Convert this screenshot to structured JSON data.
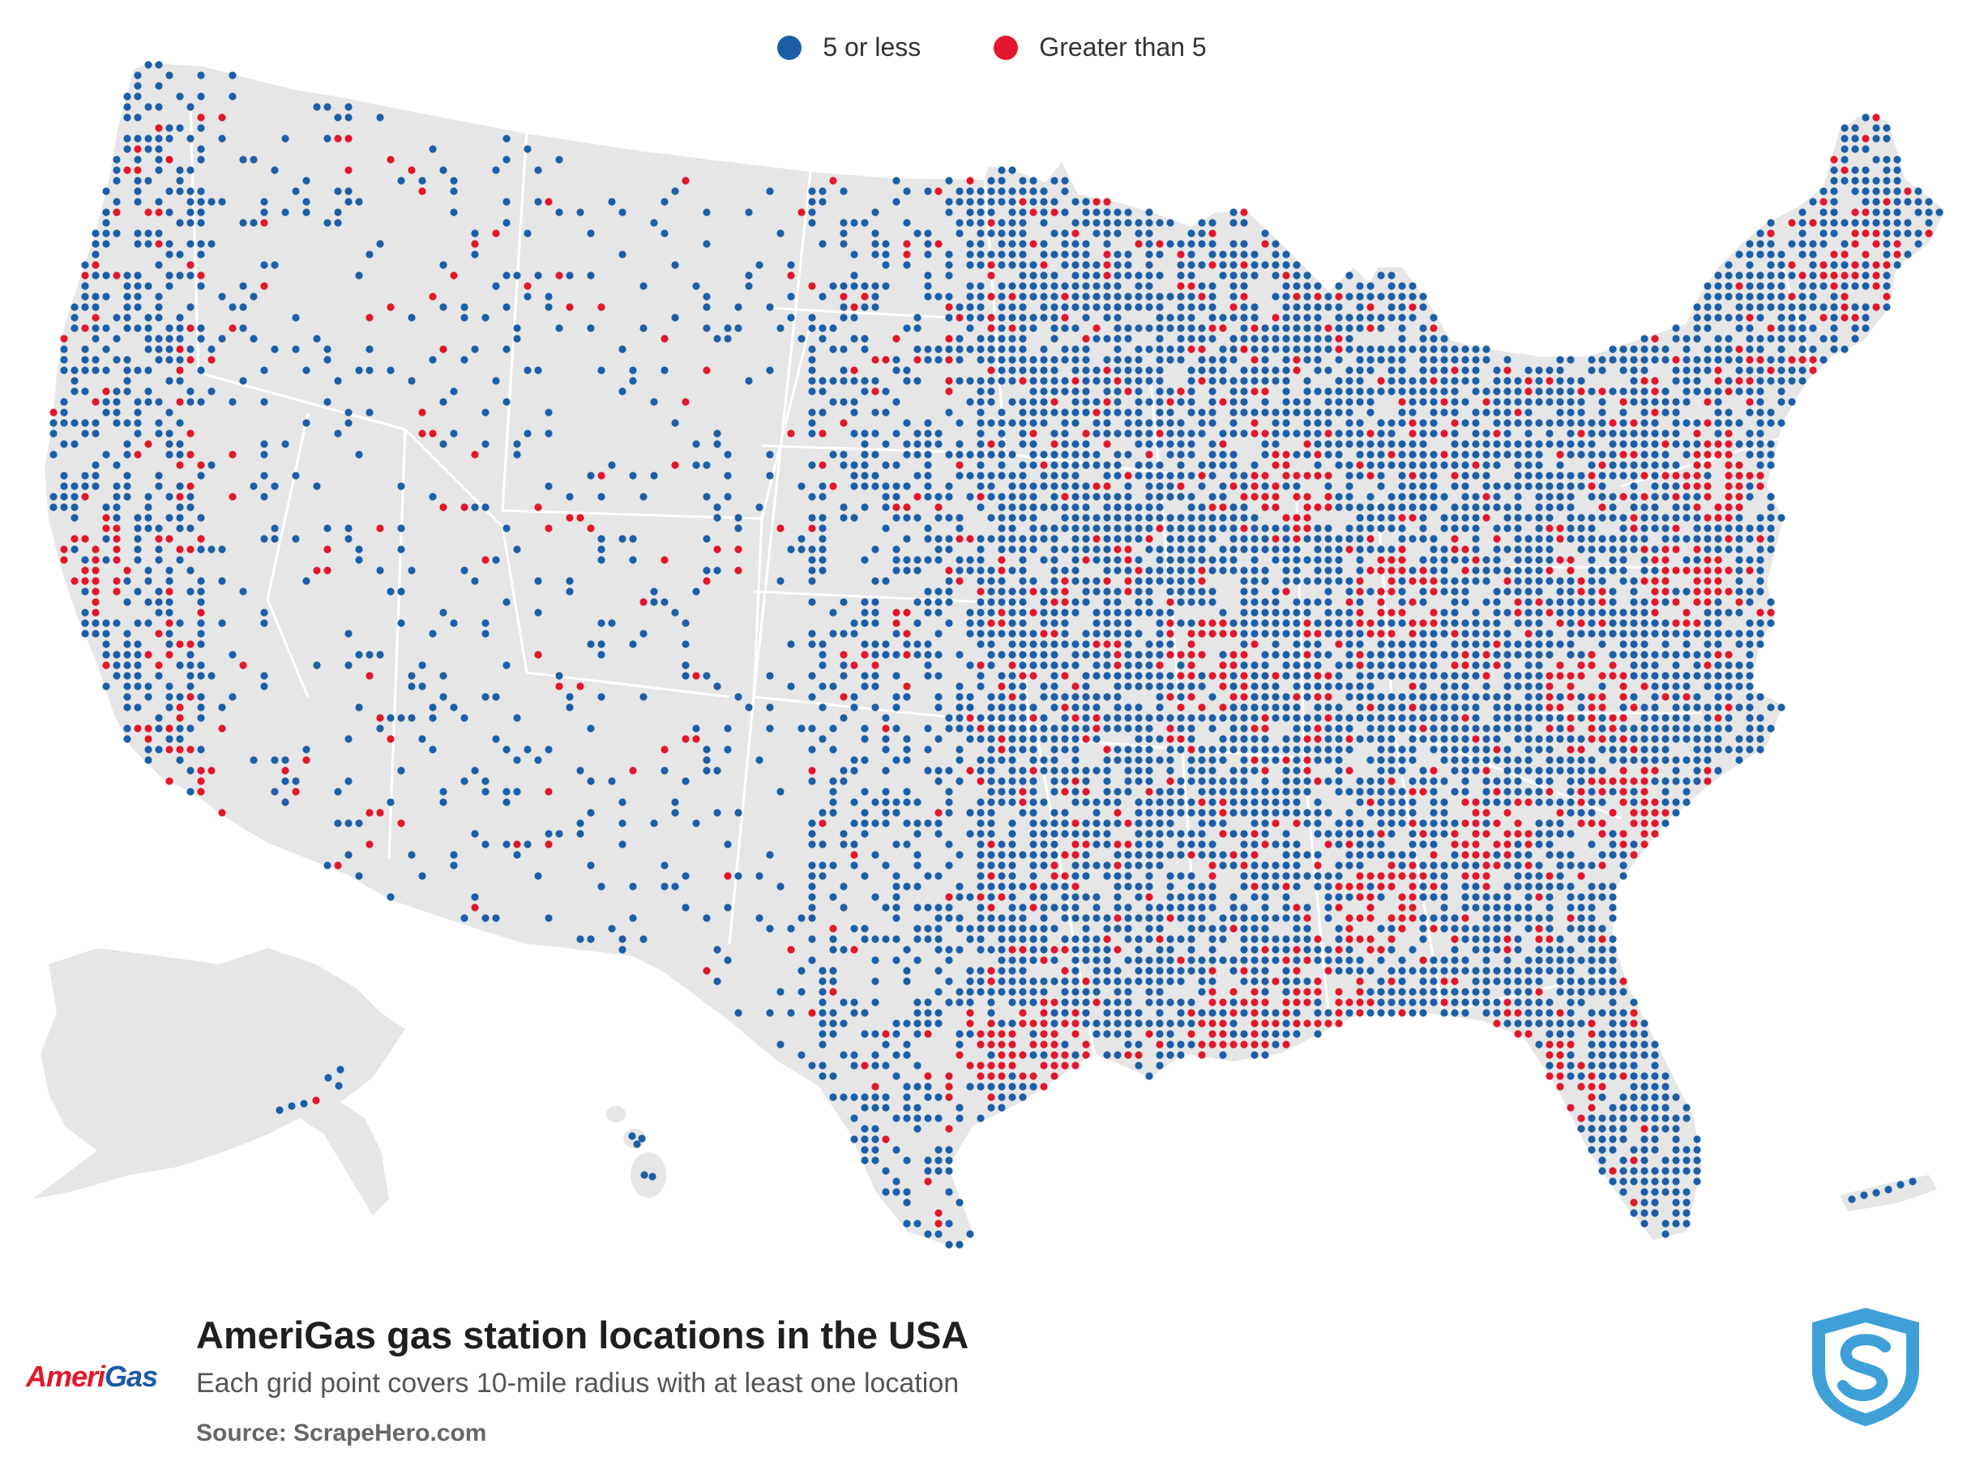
{
  "title": "AmeriGas gas station locations in the USA",
  "subtitle": "Each grid point covers 10-mile radius with at least one location",
  "source": "Source: ScrapeHero.com",
  "brand": {
    "part1": "Ameri",
    "part2": "Gas"
  },
  "legend": [
    {
      "label": "5 or less",
      "color": "#1c5fa8"
    },
    {
      "label": "Greater than 5",
      "color": "#e3172b"
    }
  ],
  "colors": {
    "land": "#e6e6e6",
    "border": "#ffffff",
    "low": "#1c5fa8",
    "high": "#e3172b",
    "shield": "#3fa0d8"
  },
  "icons": {
    "publisher": "shield-s-icon"
  }
}
